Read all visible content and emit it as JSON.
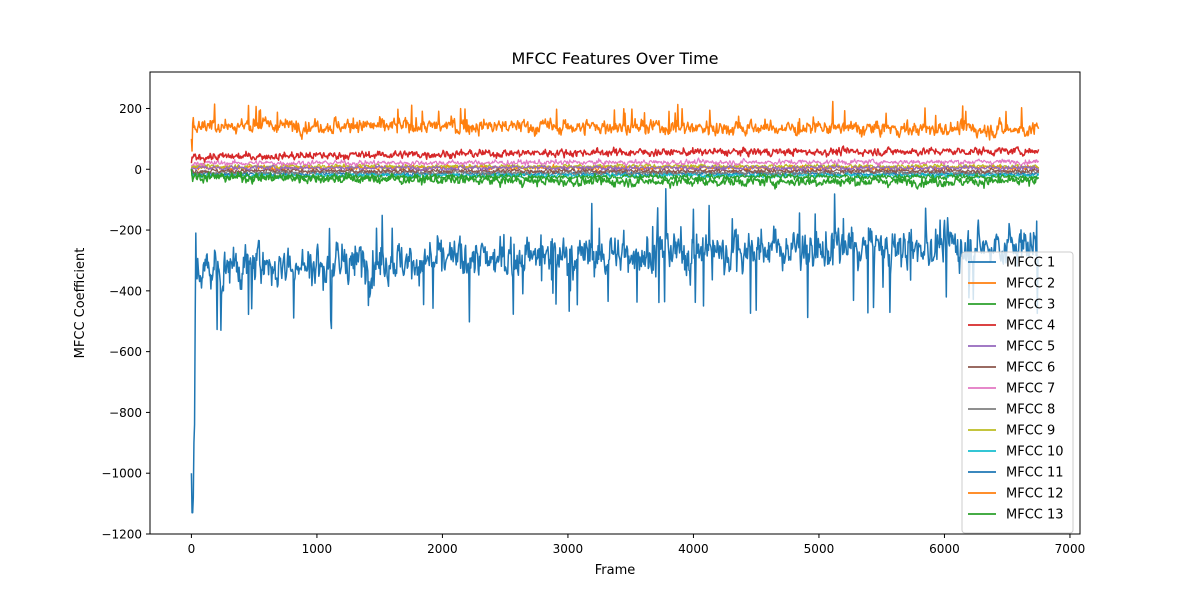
{
  "chart_data": {
    "type": "line",
    "title": "MFCC Features Over Time",
    "xlabel": "Frame",
    "ylabel": "MFCC Coefficient",
    "xlim": [
      -330,
      7080
    ],
    "ylim": [
      -1200,
      320
    ],
    "xticks": [
      0,
      1000,
      2000,
      3000,
      4000,
      5000,
      6000,
      7000
    ],
    "yticks": [
      -1200,
      -1000,
      -800,
      -600,
      -400,
      -200,
      0,
      200
    ],
    "grid": false,
    "legend_position": "lower-right",
    "n_frames": 6750,
    "series": [
      {
        "name": "MFCC 1",
        "color": "#1f77b4",
        "base": -280,
        "spread": 95,
        "start_values": [
          -1000,
          -1130,
          -1130,
          -1080,
          -900,
          -840,
          -500,
          -210,
          -360
        ],
        "trend": [
          [
            0,
            -330
          ],
          [
            2000,
            -300
          ],
          [
            4000,
            -270
          ],
          [
            6740,
            -250
          ]
        ]
      },
      {
        "name": "MFCC 2",
        "color": "#ff7f0e",
        "base": 140,
        "spread": 35,
        "start_values": [
          100,
          60,
          150,
          170
        ],
        "trend": [
          [
            0,
            145
          ],
          [
            3000,
            140
          ],
          [
            6740,
            130
          ]
        ]
      },
      {
        "name": "MFCC 3",
        "color": "#2ca02c",
        "base": -35,
        "spread": 22,
        "start_values": [
          0,
          -20,
          -40
        ],
        "trend": [
          [
            0,
            -25
          ],
          [
            3000,
            -40
          ],
          [
            6740,
            -40
          ]
        ]
      },
      {
        "name": "MFCC 4",
        "color": "#d62728",
        "base": 50,
        "spread": 18,
        "start_values": [
          20,
          40
        ],
        "trend": [
          [
            0,
            40
          ],
          [
            3000,
            55
          ],
          [
            6740,
            60
          ]
        ]
      },
      {
        "name": "MFCC 5",
        "color": "#9467bd",
        "base": 5,
        "spread": 10,
        "start_values": [
          0
        ],
        "trend": [
          [
            0,
            5
          ],
          [
            6740,
            5
          ]
        ]
      },
      {
        "name": "MFCC 6",
        "color": "#8c564b",
        "base": -5,
        "spread": 10,
        "start_values": [
          0
        ],
        "trend": [
          [
            0,
            -5
          ],
          [
            6740,
            -5
          ]
        ]
      },
      {
        "name": "MFCC 7",
        "color": "#e377c2",
        "base": 20,
        "spread": 12,
        "start_values": [
          10
        ],
        "trend": [
          [
            0,
            20
          ],
          [
            6740,
            25
          ]
        ]
      },
      {
        "name": "MFCC 8",
        "color": "#7f7f7f",
        "base": -10,
        "spread": 10,
        "start_values": [
          0
        ],
        "trend": [
          [
            0,
            -10
          ],
          [
            6740,
            -10
          ]
        ]
      },
      {
        "name": "MFCC 9",
        "color": "#bcbd22",
        "base": 10,
        "spread": 10,
        "start_values": [
          0
        ],
        "trend": [
          [
            0,
            10
          ],
          [
            6740,
            10
          ]
        ]
      },
      {
        "name": "MFCC 10",
        "color": "#17becf",
        "base": -20,
        "spread": 10,
        "start_values": [
          0
        ],
        "trend": [
          [
            0,
            -20
          ],
          [
            6740,
            -20
          ]
        ]
      },
      {
        "name": "MFCC 11",
        "color": "#1f77b4",
        "base": -15,
        "spread": 10,
        "start_values": [
          0
        ],
        "trend": [
          [
            0,
            -15
          ],
          [
            6740,
            -15
          ]
        ]
      },
      {
        "name": "MFCC 12",
        "color": "#ff7f0e",
        "base": 5,
        "spread": 10,
        "start_values": [
          0
        ],
        "trend": [
          [
            0,
            5
          ],
          [
            6740,
            5
          ]
        ]
      },
      {
        "name": "MFCC 13",
        "color": "#2ca02c",
        "base": -25,
        "spread": 12,
        "start_values": [
          0
        ],
        "trend": [
          [
            0,
            -25
          ],
          [
            6740,
            -25
          ]
        ]
      }
    ]
  }
}
